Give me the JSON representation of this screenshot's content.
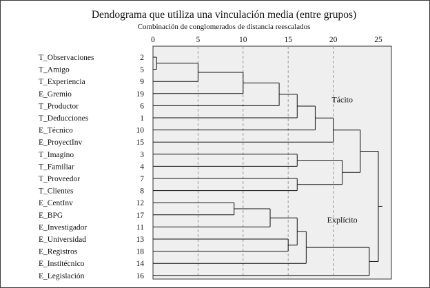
{
  "chart_data": {
    "type": "dendrogram",
    "title": "Dendograma que utiliza una vinculación media (entre grupos)",
    "subtitle": "Combinación de conglomerados de distancia reescalados",
    "x_ticks": [
      "0",
      "5",
      "10",
      "15",
      "20",
      "25"
    ],
    "xlim": [
      0,
      25
    ],
    "grid": "vertical dashed",
    "leaves": [
      {
        "label": "T_Observaciones",
        "id": "2"
      },
      {
        "label": "T_Amigo",
        "id": "5"
      },
      {
        "label": "T_Experiencia",
        "id": "9"
      },
      {
        "label": "E_Gremio",
        "id": "19"
      },
      {
        "label": "T_Productor",
        "id": "6"
      },
      {
        "label": "T_Deducciones",
        "id": "1"
      },
      {
        "label": "E_Técnico",
        "id": "10"
      },
      {
        "label": "E_ProyectInv",
        "id": "15"
      },
      {
        "label": "T_Imagino",
        "id": "3"
      },
      {
        "label": "T_Familiar",
        "id": "4"
      },
      {
        "label": "T_Proveedor",
        "id": "7"
      },
      {
        "label": "T_Clientes",
        "id": "8"
      },
      {
        "label": "E_CentInv",
        "id": "12"
      },
      {
        "label": "E_BPG",
        "id": "17"
      },
      {
        "label": "E_Investigador",
        "id": "11"
      },
      {
        "label": "E_Universidad",
        "id": "13"
      },
      {
        "label": "E_Registros",
        "id": "18"
      },
      {
        "label": "E_Institécnico",
        "id": "14"
      },
      {
        "label": "E_Legislación",
        "id": "16"
      }
    ],
    "merges": [
      {
        "a": "L0",
        "b": "L1",
        "distance": 0.4
      },
      {
        "a": "N0",
        "b": "L2",
        "distance": 5
      },
      {
        "a": "N1",
        "b": "L3",
        "distance": 10
      },
      {
        "a": "N2",
        "b": "L4",
        "distance": 14
      },
      {
        "a": "N3",
        "b": "L5",
        "distance": 16
      },
      {
        "a": "L8",
        "b": "L9",
        "distance": 16
      },
      {
        "a": "L10",
        "b": "L11",
        "distance": 16
      },
      {
        "a": "L12",
        "b": "L13",
        "distance": 9
      },
      {
        "a": "N7",
        "b": "L14",
        "distance": 13
      },
      {
        "a": "L15",
        "b": "L16",
        "distance": 15
      },
      {
        "a": "N8",
        "b": "N9",
        "distance": 16
      },
      {
        "a": "N10",
        "b": "L17",
        "distance": 17
      },
      {
        "a": "N4",
        "b": "L6",
        "distance": 18
      },
      {
        "a": "N12",
        "b": "L7",
        "distance": 20
      },
      {
        "a": "N5",
        "b": "N6",
        "distance": 21
      },
      {
        "a": "N13",
        "b": "N14",
        "distance": 23
      },
      {
        "a": "N11",
        "b": "L18",
        "distance": 24
      },
      {
        "a": "N15",
        "b": "N16",
        "distance": 25
      }
    ],
    "annotations": [
      {
        "text": "Tácito",
        "x": 21,
        "after_leaf": 3.5
      },
      {
        "text": "Explícito",
        "x": 21,
        "after_leaf": 13.4
      }
    ]
  }
}
